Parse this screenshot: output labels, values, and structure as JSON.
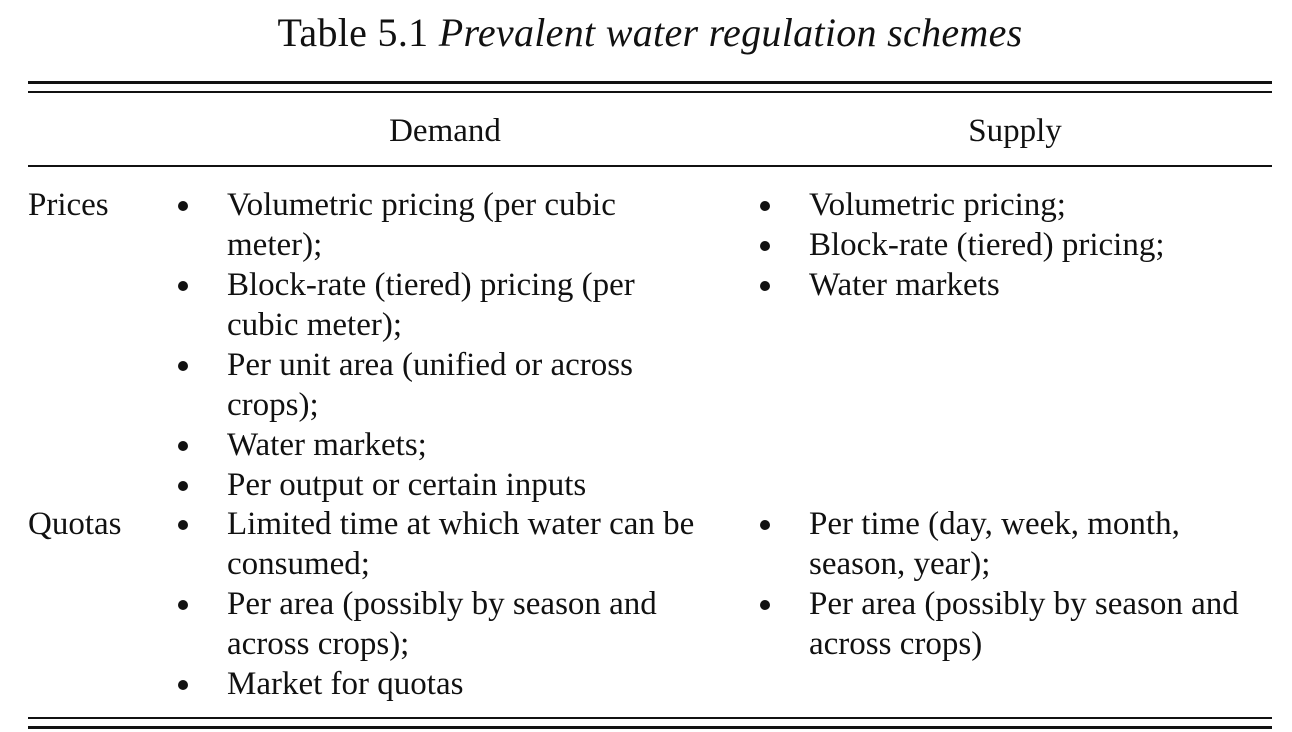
{
  "caption": {
    "label": "Table 5.1",
    "title": "Prevalent water regulation schemes"
  },
  "table": {
    "columns": {
      "demand": "Demand",
      "supply": "Supply"
    },
    "rows": [
      {
        "label": "Prices",
        "demand": [
          "Volumetric pricing (per cubic meter);",
          "Block-rate (tiered) pricing (per cubic meter);",
          "Per unit area (unified or across crops);",
          "Water markets;",
          "Per output or certain inputs"
        ],
        "supply": [
          "Volumetric pricing;",
          "Block-rate (tiered) pricing;",
          "Water markets"
        ]
      },
      {
        "label": "Quotas",
        "demand": [
          "Limited time at which water can be consumed;",
          "Per area (possibly by season and across crops);",
          "Market for quotas"
        ],
        "supply": [
          "Per time (day, week, month, season, year);",
          "Per area (possibly by season and across crops)"
        ]
      }
    ]
  }
}
